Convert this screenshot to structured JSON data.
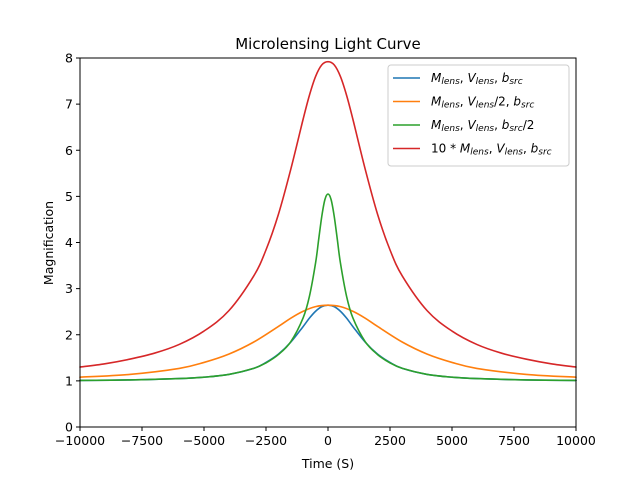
{
  "chart_data": {
    "type": "line",
    "title": "Microlensing Light Curve",
    "xlabel": "Time (S)",
    "ylabel": "Magnification",
    "xlim": [
      -10000,
      10000
    ],
    "ylim": [
      0,
      8
    ],
    "xticks": [
      -10000,
      -7500,
      -5000,
      -2500,
      0,
      2500,
      5000,
      7500,
      10000
    ],
    "xtick_labels": [
      "−10000",
      "−7500",
      "−5000",
      "−2500",
      "0",
      "2500",
      "5000",
      "7500",
      "10000"
    ],
    "yticks": [
      0,
      1,
      2,
      3,
      4,
      5,
      6,
      7,
      8
    ],
    "ytick_labels": [
      "0",
      "1",
      "2",
      "3",
      "4",
      "5",
      "6",
      "7",
      "8"
    ],
    "grid": false,
    "legend_position": "top-right",
    "series": [
      {
        "name": "M_lens, V_lens, b_src",
        "color": "#1f77b4",
        "x": [
          -10000,
          -8000,
          -6000,
          -5000,
          -4000,
          -3000,
          -2500,
          -2000,
          -1500,
          -1000,
          -750,
          -500,
          -250,
          0,
          250,
          500,
          750,
          1000,
          1500,
          2000,
          2500,
          3000,
          4000,
          5000,
          6000,
          8000,
          10000
        ],
        "y": [
          1.01,
          1.02,
          1.05,
          1.08,
          1.14,
          1.27,
          1.4,
          1.58,
          1.84,
          2.18,
          2.36,
          2.51,
          2.61,
          2.64,
          2.61,
          2.51,
          2.36,
          2.18,
          1.84,
          1.58,
          1.4,
          1.27,
          1.14,
          1.08,
          1.05,
          1.02,
          1.01
        ]
      },
      {
        "name": "M_lens, V_lens/2, b_src",
        "color": "#ff7f0e",
        "x": [
          -10000,
          -8000,
          -6000,
          -5000,
          -4000,
          -3000,
          -2000,
          -1500,
          -1000,
          -500,
          0,
          500,
          1000,
          1500,
          2000,
          3000,
          4000,
          5000,
          6000,
          8000,
          10000
        ],
        "y": [
          1.08,
          1.14,
          1.27,
          1.4,
          1.58,
          1.84,
          2.18,
          2.36,
          2.51,
          2.61,
          2.64,
          2.61,
          2.51,
          2.36,
          2.18,
          1.84,
          1.58,
          1.4,
          1.27,
          1.14,
          1.08
        ]
      },
      {
        "name": "M_lens, V_lens, b_src/2",
        "color": "#2ca02c",
        "x": [
          -10000,
          -8000,
          -6000,
          -5000,
          -4000,
          -3000,
          -2500,
          -2000,
          -1500,
          -1000,
          -750,
          -500,
          -375,
          -250,
          -125,
          0,
          125,
          250,
          375,
          500,
          750,
          1000,
          1500,
          2000,
          2500,
          3000,
          4000,
          5000,
          6000,
          8000,
          10000
        ],
        "y": [
          1.01,
          1.02,
          1.05,
          1.08,
          1.14,
          1.27,
          1.39,
          1.57,
          1.85,
          2.37,
          2.83,
          3.56,
          4.07,
          4.57,
          4.93,
          5.05,
          4.93,
          4.57,
          4.07,
          3.56,
          2.83,
          2.37,
          1.85,
          1.57,
          1.39,
          1.27,
          1.14,
          1.08,
          1.05,
          1.02,
          1.01
        ]
      },
      {
        "name": "10*M_lens, V_lens, b_src",
        "color": "#d62728",
        "x": [
          -10000,
          -9000,
          -8000,
          -7000,
          -6000,
          -5000,
          -4000,
          -3000,
          -2500,
          -2000,
          -1500,
          -1000,
          -750,
          -500,
          -250,
          0,
          250,
          500,
          750,
          1000,
          1500,
          2000,
          2500,
          3000,
          4000,
          5000,
          6000,
          7000,
          8000,
          9000,
          10000
        ],
        "y": [
          1.3,
          1.37,
          1.47,
          1.6,
          1.79,
          2.08,
          2.52,
          3.27,
          3.84,
          4.61,
          5.59,
          6.68,
          7.19,
          7.6,
          7.85,
          7.92,
          7.85,
          7.6,
          7.19,
          6.68,
          5.59,
          4.61,
          3.84,
          3.27,
          2.52,
          2.08,
          1.79,
          1.6,
          1.47,
          1.37,
          1.3
        ]
      }
    ]
  }
}
